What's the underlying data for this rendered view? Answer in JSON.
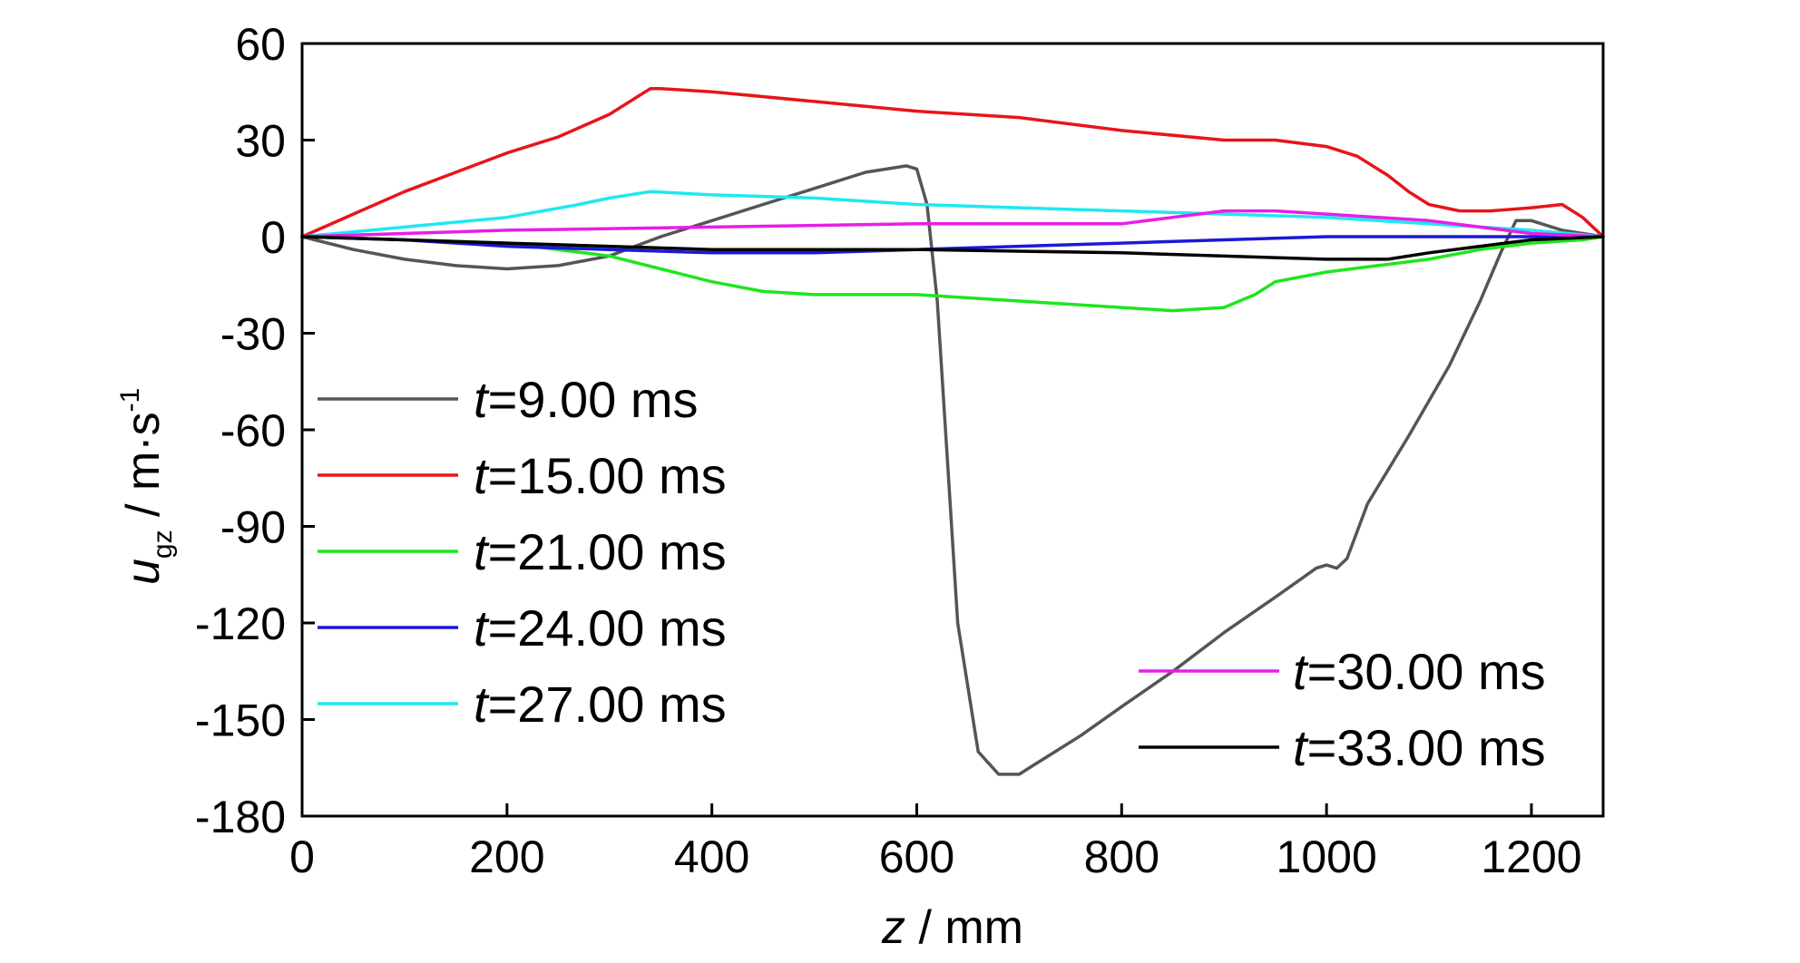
{
  "chart_data": {
    "type": "line",
    "xlabel": {
      "var": "z",
      "unit": " / mm"
    },
    "ylabel": {
      "var": "u",
      "sub": "gz",
      "unit": " / m·s",
      "sup": "-1"
    },
    "xlim": [
      0,
      1270
    ],
    "ylim": [
      -180,
      60
    ],
    "xticks": [
      0,
      200,
      400,
      600,
      800,
      1000,
      1200
    ],
    "yticks": [
      60,
      30,
      0,
      -30,
      -60,
      -90,
      -120,
      -150,
      -180
    ],
    "grid": false,
    "legend": [
      {
        "position": "middle-left",
        "entries": [
          0,
          1,
          2,
          3,
          4
        ]
      },
      {
        "position": "bottom-right",
        "entries": [
          5,
          6
        ]
      }
    ],
    "series": [
      {
        "name_var": "t",
        "name_rest": "=9.00 ms",
        "color": "#555555",
        "x": [
          0,
          50,
          100,
          150,
          200,
          250,
          300,
          350,
          400,
          450,
          500,
          550,
          590,
          600,
          610,
          620,
          630,
          640,
          660,
          680,
          700,
          720,
          760,
          800,
          850,
          900,
          950,
          990,
          1000,
          1010,
          1020,
          1040,
          1080,
          1120,
          1150,
          1170,
          1185,
          1200,
          1230,
          1270
        ],
        "y": [
          0,
          -4,
          -7,
          -9,
          -10,
          -9,
          -6,
          0,
          5,
          10,
          15,
          20,
          22,
          21,
          10,
          -20,
          -70,
          -120,
          -160,
          -167,
          -167,
          -163,
          -155,
          -146,
          -135,
          -123,
          -112,
          -103,
          -102,
          -103,
          -100,
          -83,
          -62,
          -40,
          -20,
          -5,
          5,
          5,
          2,
          0
        ]
      },
      {
        "name_var": "t",
        "name_rest": "=15.00 ms",
        "color": "#e8141b",
        "x": [
          0,
          50,
          100,
          150,
          200,
          250,
          300,
          340,
          350,
          400,
          500,
          600,
          700,
          800,
          900,
          950,
          1000,
          1030,
          1060,
          1080,
          1100,
          1130,
          1160,
          1200,
          1230,
          1250,
          1270
        ],
        "y": [
          0,
          7,
          14,
          20,
          26,
          31,
          38,
          46,
          46,
          45,
          42,
          39,
          37,
          33,
          30,
          30,
          28,
          25,
          19,
          14,
          10,
          8,
          8,
          9,
          10,
          6,
          0
        ]
      },
      {
        "name_var": "t",
        "name_rest": "=21.00 ms",
        "color": "#1ee61e",
        "x": [
          0,
          100,
          200,
          300,
          350,
          400,
          450,
          500,
          600,
          700,
          800,
          850,
          900,
          930,
          950,
          1000,
          1050,
          1100,
          1150,
          1200,
          1250,
          1270
        ],
        "y": [
          0,
          -1,
          -2,
          -6,
          -10,
          -14,
          -17,
          -18,
          -18,
          -20,
          -22,
          -23,
          -22,
          -18,
          -14,
          -11,
          -9,
          -7,
          -4,
          -2,
          -1,
          0
        ]
      },
      {
        "name_var": "t",
        "name_rest": "=24.00 ms",
        "color": "#1a1ad6",
        "x": [
          0,
          100,
          200,
          300,
          400,
          500,
          600,
          700,
          800,
          900,
          1000,
          1100,
          1200,
          1270
        ],
        "y": [
          0,
          -1,
          -3,
          -4,
          -5,
          -5,
          -4,
          -3,
          -2,
          -1,
          0,
          0,
          0,
          0
        ]
      },
      {
        "name_var": "t",
        "name_rest": "=27.00 ms",
        "color": "#1ee8f0",
        "x": [
          0,
          100,
          200,
          270,
          300,
          340,
          400,
          500,
          600,
          700,
          800,
          900,
          1000,
          1100,
          1200,
          1270
        ],
        "y": [
          0,
          3,
          6,
          10,
          12,
          14,
          13,
          12,
          10,
          9,
          8,
          7,
          6,
          4,
          2,
          0
        ]
      },
      {
        "name_var": "t",
        "name_rest": "=30.00 ms",
        "color": "#e81ee8",
        "x": [
          0,
          200,
          400,
          600,
          700,
          800,
          850,
          900,
          950,
          1000,
          1050,
          1100,
          1150,
          1200,
          1270
        ],
        "y": [
          0,
          2,
          3,
          4,
          4,
          4,
          6,
          8,
          8,
          7,
          6,
          5,
          3,
          1,
          0
        ]
      },
      {
        "name_var": "t",
        "name_rest": "=33.00 ms",
        "color": "#000000",
        "x": [
          0,
          200,
          400,
          600,
          800,
          1000,
          1060,
          1100,
          1150,
          1200,
          1270
        ],
        "y": [
          0,
          -2,
          -4,
          -4,
          -5,
          -7,
          -7,
          -5,
          -3,
          -1,
          0
        ]
      }
    ]
  }
}
